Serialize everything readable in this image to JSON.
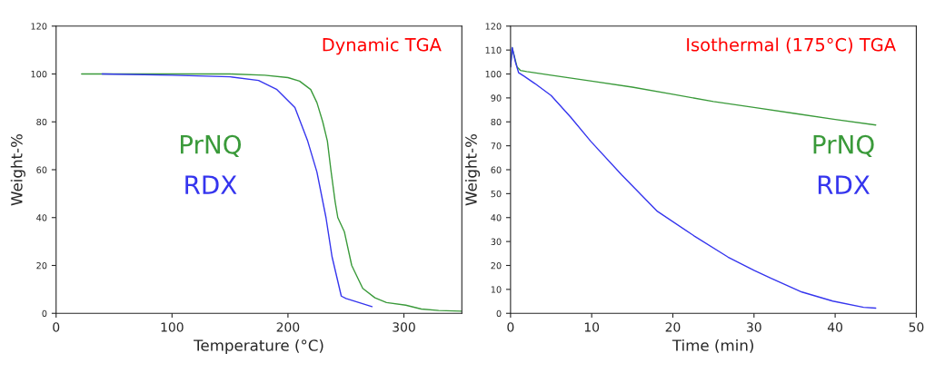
{
  "chart_data": [
    {
      "type": "line",
      "title": "Dynamic TGA",
      "xlabel": "Temperature (°C)",
      "ylabel": "Weight-%",
      "xlim": [
        0,
        350
      ],
      "xticks": [
        0,
        100,
        200,
        300
      ],
      "ylim": [
        0,
        120
      ],
      "yticks": [
        0,
        20,
        40,
        60,
        80,
        100,
        120
      ],
      "grid": false,
      "series": [
        {
          "name": "PrNQ",
          "color": "#3a9a3a",
          "x": [
            22,
            100,
            150,
            180,
            200,
            210,
            219.6,
            225,
            230,
            234,
            237,
            240.7,
            243,
            248.7,
            255,
            264.5,
            275,
            285,
            301.6,
            315,
            330,
            349.7
          ],
          "values": [
            100,
            100,
            100,
            99.5,
            98.5,
            97,
            93.5,
            88,
            80,
            72,
            60,
            46.6,
            40,
            34,
            20,
            10.4,
            6.5,
            4.5,
            3.4,
            1.8,
            1.2,
            0.9
          ]
        },
        {
          "name": "RDX",
          "color": "#3535ee",
          "x": [
            39.7,
            100,
            150,
            174.6,
            190.5,
            206,
            217,
            225,
            232.8,
            238,
            246,
            250,
            272.5
          ],
          "values": [
            100,
            99.5,
            98.8,
            97.3,
            93.5,
            86,
            72,
            59,
            40,
            23.7,
            7.2,
            6.2,
            2.8
          ]
        }
      ]
    },
    {
      "type": "line",
      "title": "Isothermal (175°C) TGA",
      "xlabel": "Time (min)",
      "ylabel": "Weight-%",
      "xlim": [
        0,
        50
      ],
      "xticks": [
        0,
        10,
        20,
        30,
        40,
        50
      ],
      "ylim": [
        0,
        120
      ],
      "yticks": [
        0,
        10,
        20,
        30,
        40,
        50,
        60,
        70,
        80,
        90,
        100,
        110,
        120
      ],
      "grid": false,
      "series": [
        {
          "name": "PrNQ",
          "color": "#3a9a3a",
          "x": [
            0,
            0.2,
            0.8,
            1.2,
            2,
            5,
            10,
            15,
            20,
            25,
            30,
            35,
            40,
            45
          ],
          "values": [
            103,
            111,
            103,
            101.5,
            101,
            99.5,
            97,
            94.5,
            91.5,
            88.5,
            86,
            83.5,
            81,
            78.7
          ]
        },
        {
          "name": "RDX",
          "color": "#3535ee",
          "x": [
            0,
            0.2,
            0.6,
            1,
            1.7,
            3,
            5,
            7.4,
            9.9,
            13.7,
            18.1,
            22.6,
            26.8,
            30,
            32.1,
            35.9,
            39.7,
            43.5,
            45
          ],
          "values": [
            103,
            111,
            105,
            100.5,
            99,
            96,
            91,
            82,
            71.8,
            57.8,
            42.6,
            32.4,
            23.5,
            18,
            14.6,
            8.9,
            5.1,
            2.5,
            2.2
          ]
        }
      ]
    }
  ]
}
